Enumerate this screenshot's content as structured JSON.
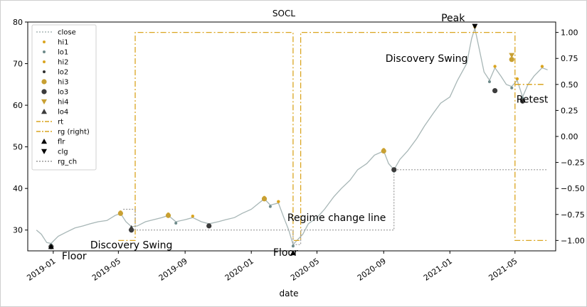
{
  "chart_data": {
    "type": "line",
    "title": "SOCL",
    "xlabel": "date",
    "ylabel": "",
    "ylabel_right": "",
    "xlim": [
      "2018-11-15",
      "2021-07-15"
    ],
    "ylim": [
      25,
      80
    ],
    "ylim_right": [
      -1.1,
      1.1
    ],
    "x_ticks": [
      "2019-01",
      "2019-05",
      "2019-09",
      "2020-01",
      "2020-05",
      "2020-09",
      "2021-01",
      "2021-05"
    ],
    "y_ticks": [
      30,
      40,
      50,
      60,
      70,
      80
    ],
    "y_ticks_right": [
      -1.0,
      -0.75,
      -0.5,
      -0.25,
      0.0,
      0.25,
      0.5,
      0.75,
      1.0
    ],
    "y_tick_labels_right": [
      "−1.00",
      "−0.75",
      "−0.50",
      "−0.25",
      "0.00",
      "0.25",
      "0.50",
      "0.75",
      "1.00"
    ],
    "grid": false,
    "legend_position": "upper-left",
    "colors": {
      "close": "#a7b6b6",
      "hi": "#daa520",
      "lo": "#6e8b8b",
      "lo2": "#2f2f2f",
      "hi3": "#c8a032",
      "lo3": "#3c3c3c",
      "rt": "#daa520",
      "rg": "#daa520",
      "rg_ch": "#999999",
      "marker": "#000000"
    },
    "legend": [
      {
        "label": "close",
        "kind": "line-dotted",
        "color": "#a7b6b6"
      },
      {
        "label": "hi1",
        "kind": "dot",
        "color": "#daa520"
      },
      {
        "label": "lo1",
        "kind": "dot",
        "color": "#6e8b8b"
      },
      {
        "label": "hi2",
        "kind": "dot",
        "color": "#daa520"
      },
      {
        "label": "lo2",
        "kind": "dot",
        "color": "#2f2f2f"
      },
      {
        "label": "hi3",
        "kind": "bigdot",
        "color": "#c8a032"
      },
      {
        "label": "lo3",
        "kind": "bigdot",
        "color": "#3c3c3c"
      },
      {
        "label": "hi4",
        "kind": "tri-down",
        "color": "#c8a032"
      },
      {
        "label": "lo4",
        "kind": "tri-up",
        "color": "#3c3c3c"
      },
      {
        "label": "rt",
        "kind": "line-dashdot",
        "color": "#daa520"
      },
      {
        "label": "rg (right)",
        "kind": "line-dashdot",
        "color": "#daa520"
      },
      {
        "label": "flr",
        "kind": "tri-up",
        "color": "#000000"
      },
      {
        "label": "clg",
        "kind": "tri-down",
        "color": "#000000"
      },
      {
        "label": "rg_ch",
        "kind": "line-dotted",
        "color": "#999999"
      }
    ],
    "series": [
      {
        "name": "close",
        "points": [
          [
            "2018-12-01",
            30.0
          ],
          [
            "2018-12-10",
            29.0
          ],
          [
            "2018-12-20",
            27.0
          ],
          [
            "2018-12-28",
            26.8
          ],
          [
            "2019-01-10",
            28.5
          ],
          [
            "2019-01-25",
            29.5
          ],
          [
            "2019-02-10",
            30.5
          ],
          [
            "2019-02-25",
            31.0
          ],
          [
            "2019-03-10",
            31.5
          ],
          [
            "2019-03-25",
            32.0
          ],
          [
            "2019-04-10",
            32.3
          ],
          [
            "2019-04-25",
            33.5
          ],
          [
            "2019-05-05",
            34.0
          ],
          [
            "2019-05-15",
            32.0
          ],
          [
            "2019-05-25",
            30.8
          ],
          [
            "2019-06-05",
            31.0
          ],
          [
            "2019-06-20",
            32.0
          ],
          [
            "2019-07-05",
            32.5
          ],
          [
            "2019-07-20",
            33.0
          ],
          [
            "2019-08-01",
            33.5
          ],
          [
            "2019-08-15",
            32.0
          ],
          [
            "2019-09-01",
            32.5
          ],
          [
            "2019-09-15",
            33.0
          ],
          [
            "2019-10-01",
            32.0
          ],
          [
            "2019-10-15",
            31.5
          ],
          [
            "2019-11-01",
            32.0
          ],
          [
            "2019-11-15",
            32.5
          ],
          [
            "2019-12-01",
            33.0
          ],
          [
            "2019-12-15",
            34.0
          ],
          [
            "2020-01-01",
            35.0
          ],
          [
            "2020-01-15",
            36.5
          ],
          [
            "2020-01-25",
            37.5
          ],
          [
            "2020-02-05",
            36.0
          ],
          [
            "2020-02-20",
            36.5
          ],
          [
            "2020-03-01",
            33.0
          ],
          [
            "2020-03-10",
            30.0
          ],
          [
            "2020-03-18",
            26.5
          ],
          [
            "2020-03-25",
            27.5
          ],
          [
            "2020-04-05",
            29.0
          ],
          [
            "2020-04-15",
            31.5
          ],
          [
            "2020-05-01",
            33.0
          ],
          [
            "2020-05-15",
            35.0
          ],
          [
            "2020-06-01",
            38.0
          ],
          [
            "2020-06-15",
            40.0
          ],
          [
            "2020-07-01",
            42.0
          ],
          [
            "2020-07-15",
            44.5
          ],
          [
            "2020-08-01",
            46.0
          ],
          [
            "2020-08-15",
            48.0
          ],
          [
            "2020-09-01",
            49.0
          ],
          [
            "2020-09-10",
            46.0
          ],
          [
            "2020-09-20",
            44.5
          ],
          [
            "2020-10-01",
            47.0
          ],
          [
            "2020-10-15",
            49.0
          ],
          [
            "2020-11-01",
            52.0
          ],
          [
            "2020-11-15",
            55.0
          ],
          [
            "2020-12-01",
            58.0
          ],
          [
            "2020-12-15",
            60.5
          ],
          [
            "2021-01-01",
            62.0
          ],
          [
            "2021-01-15",
            66.0
          ],
          [
            "2021-02-01",
            70.0
          ],
          [
            "2021-02-10",
            76.0
          ],
          [
            "2021-02-16",
            78.5
          ],
          [
            "2021-02-25",
            73.0
          ],
          [
            "2021-03-05",
            68.0
          ],
          [
            "2021-03-15",
            66.0
          ],
          [
            "2021-03-25",
            69.0
          ],
          [
            "2021-04-05",
            67.0
          ],
          [
            "2021-04-15",
            65.0
          ],
          [
            "2021-04-25",
            64.5
          ],
          [
            "2021-05-05",
            66.0
          ],
          [
            "2021-05-15",
            62.0
          ],
          [
            "2021-05-25",
            65.0
          ],
          [
            "2021-06-05",
            67.0
          ],
          [
            "2021-06-20",
            69.0
          ],
          [
            "2021-06-30",
            68.5
          ]
        ]
      },
      {
        "name": "rt",
        "points": [
          [
            "2021-05-01",
            65.0
          ],
          [
            "2021-06-25",
            65.0
          ]
        ]
      },
      {
        "name": "rg (right)",
        "axis": "right",
        "points": [
          [
            "2019-05-01",
            -1.0
          ],
          [
            "2019-06-01",
            -1.0
          ],
          [
            "2019-06-01",
            1.0
          ],
          [
            "2020-03-18",
            1.0
          ],
          [
            "2020-03-18",
            -1.0
          ],
          [
            "2020-04-01",
            -1.0
          ],
          [
            "2020-04-01",
            1.0
          ],
          [
            "2021-05-01",
            1.0
          ],
          [
            "2021-05-01",
            -1.0
          ],
          [
            "2021-06-30",
            -1.0
          ]
        ]
      },
      {
        "name": "rg_ch",
        "points": [
          [
            "2019-05-10",
            35.0
          ],
          [
            "2019-06-01",
            35.0
          ],
          [
            "2019-06-01",
            30.0
          ],
          [
            "2020-03-18",
            30.0
          ],
          [
            "2020-03-18",
            26.5
          ],
          [
            "2020-04-01",
            26.5
          ],
          [
            "2020-04-01",
            30.0
          ],
          [
            "2020-09-20",
            30.0
          ],
          [
            "2020-09-20",
            44.5
          ],
          [
            "2021-06-30",
            44.5
          ]
        ]
      }
    ],
    "markers": [
      {
        "series": "hi3",
        "shape": "bigdot",
        "points": [
          [
            "2019-05-05",
            34.0
          ],
          [
            "2019-08-01",
            33.5
          ],
          [
            "2020-01-25",
            37.5
          ],
          [
            "2020-09-01",
            49.0
          ],
          [
            "2021-04-25",
            71.0
          ]
        ]
      },
      {
        "series": "lo3",
        "shape": "bigdot",
        "points": [
          [
            "2018-12-28",
            26.0
          ],
          [
            "2019-05-25",
            30.0
          ],
          [
            "2019-10-15",
            31.0
          ],
          [
            "2020-09-20",
            44.5
          ],
          [
            "2021-03-25",
            63.5
          ],
          [
            "2021-05-15",
            61.0
          ]
        ]
      },
      {
        "series": "hi4",
        "shape": "tri-down",
        "points": [
          [
            "2021-04-25",
            72.0
          ]
        ]
      },
      {
        "series": "lo4",
        "shape": "tri-up",
        "points": [
          [
            "2019-05-25",
            30.5
          ]
        ]
      },
      {
        "series": "flr",
        "shape": "tri-up",
        "points": [
          [
            "2018-12-28",
            26.0
          ],
          [
            "2020-03-18",
            24.5
          ]
        ]
      },
      {
        "series": "clg",
        "shape": "tri-down",
        "points": [
          [
            "2021-02-16",
            79.0
          ]
        ]
      }
    ],
    "annotations": [
      {
        "text": "Floor",
        "x": "2019-01-01",
        "y": 26.0
      },
      {
        "text": "Discovery Swing",
        "x": "2019-05-25",
        "y": 29.0
      },
      {
        "text": "Regime change line",
        "x": "2020-03-18",
        "y": 30.5
      },
      {
        "text": "Floor",
        "x": "2020-03-18",
        "y": 25.5
      },
      {
        "text": "Peak",
        "x": "2021-02-16",
        "y": 79.5
      },
      {
        "text": "Discovery Swing",
        "x": "2021-02-16",
        "y": 71.5
      },
      {
        "text": "Retest",
        "x": "2021-05-25",
        "y": 63.0
      }
    ]
  }
}
